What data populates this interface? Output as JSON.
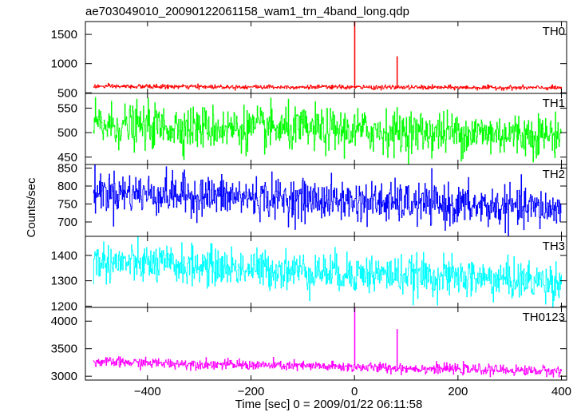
{
  "title": "ae703049010_20090122061158_wam1_trn_4band_long.qdp",
  "chart_data": {
    "type": "line",
    "title": "ae703049010_20090122061158_wam1_trn_4band_long.qdp",
    "xlabel": "Time [sec] 0 = 2009/01/22 06:11:58",
    "ylabel": "Counts/sec",
    "xlim": [
      -520,
      410
    ],
    "xticks": [
      -400,
      -200,
      0,
      200,
      400
    ],
    "xtick_labels": [
      "−400",
      "−200",
      "0",
      "200",
      "400"
    ],
    "x_range_data": [
      -505,
      400
    ],
    "time_step": 1,
    "grid": false,
    "legend": "none",
    "panels": [
      {
        "name": "TH0",
        "color": "#ff0000",
        "ylim": [
          490,
          1720
        ],
        "yticks": [
          500,
          1000,
          1500
        ],
        "baseline_start": 610,
        "baseline_end": 585,
        "noise_sd": 18,
        "spikes": [
          {
            "x": 0,
            "y": 1720
          },
          {
            "x": 82,
            "y": 1120
          }
        ]
      },
      {
        "name": "TH1",
        "color": "#00ff00",
        "ylim": [
          435,
          580
        ],
        "yticks": [
          450,
          500,
          550
        ],
        "baseline_start": 515,
        "baseline_end": 495,
        "noise_sd": 22,
        "spikes": []
      },
      {
        "name": "TH2",
        "color": "#0000ff",
        "ylim": [
          660,
          860
        ],
        "yticks": [
          700,
          750,
          800,
          850
        ],
        "baseline_start": 785,
        "baseline_end": 735,
        "noise_sd": 28,
        "spikes": []
      },
      {
        "name": "TH3",
        "color": "#00ffff",
        "ylim": [
          1195,
          1475
        ],
        "yticks": [
          1200,
          1300,
          1400
        ],
        "baseline_start": 1375,
        "baseline_end": 1295,
        "noise_sd": 38,
        "spikes": []
      },
      {
        "name": "TH0123",
        "color": "#ff00ff",
        "ylim": [
          2930,
          4250
        ],
        "yticks": [
          3000,
          3500,
          4000
        ],
        "baseline_start": 3260,
        "baseline_end": 3090,
        "noise_sd": 45,
        "spikes": [
          {
            "x": 0,
            "y": 4250
          },
          {
            "x": 82,
            "y": 3850
          }
        ]
      }
    ]
  }
}
